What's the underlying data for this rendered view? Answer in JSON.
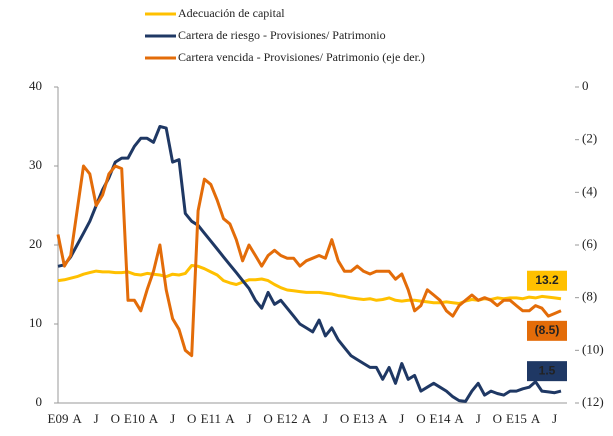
{
  "chart_data": {
    "type": "line",
    "legend": "top",
    "categories": [
      "E09",
      null,
      null,
      "A",
      null,
      null,
      "J",
      null,
      null,
      "O",
      null,
      null,
      "E10",
      null,
      null,
      "A",
      null,
      null,
      "J",
      null,
      null,
      "O",
      null,
      null,
      "E11",
      null,
      null,
      "A",
      null,
      null,
      "J",
      null,
      null,
      "O",
      null,
      null,
      "E12",
      null,
      null,
      "A",
      null,
      null,
      "J",
      null,
      null,
      "O",
      null,
      null,
      "E13",
      null,
      null,
      "A",
      null,
      null,
      "J",
      null,
      null,
      "O",
      null,
      null,
      "E14",
      null,
      null,
      "A",
      null,
      null,
      "J",
      null,
      null,
      "O",
      null,
      null,
      "E15",
      null,
      null,
      "A",
      null,
      null,
      "J",
      null
    ],
    "ylim": [
      0,
      40
    ],
    "yticks": [
      0,
      10,
      20,
      30,
      40
    ],
    "y2lim": [
      -12,
      0
    ],
    "y2ticks": [
      {
        "value": 0,
        "label": "0"
      },
      {
        "value": -2,
        "label": "(2)"
      },
      {
        "value": -4,
        "label": "(4)"
      },
      {
        "value": -6,
        "label": "(6)"
      },
      {
        "value": -8,
        "label": "(8)"
      },
      {
        "value": -10,
        "label": "(10)"
      },
      {
        "value": -12,
        "label": "(12)"
      }
    ],
    "series": [
      {
        "name": "Adecuación de capital",
        "color": "#FFC000",
        "values": [
          15.5,
          15.6,
          15.8,
          16.0,
          16.3,
          16.5,
          16.7,
          16.6,
          16.6,
          16.5,
          16.5,
          16.6,
          16.3,
          16.2,
          16.4,
          16.3,
          16.2,
          16.0,
          16.3,
          16.2,
          16.4,
          17.4,
          17.3,
          17.0,
          16.6,
          16.2,
          15.5,
          15.2,
          15.0,
          15.3,
          15.6,
          15.6,
          15.7,
          15.5,
          15.0,
          14.6,
          14.3,
          14.2,
          14.1,
          14.0,
          14.0,
          14.0,
          13.9,
          13.8,
          13.6,
          13.5,
          13.3,
          13.2,
          13.1,
          13.2,
          13.0,
          13.1,
          13.3,
          13.0,
          12.9,
          13.0,
          13.0,
          12.9,
          12.8,
          12.7,
          12.7,
          12.8,
          12.7,
          12.6,
          12.9,
          13.1,
          13.0,
          13.2,
          13.1,
          13.3,
          13.2,
          13.3,
          13.3,
          13.2,
          13.4,
          13.3,
          13.5,
          13.4,
          13.3,
          13.2
        ],
        "value_labels": [
          null,
          null,
          null,
          null,
          null,
          null,
          null,
          null,
          null,
          null,
          null,
          null,
          null,
          null,
          null,
          null,
          null,
          null,
          null,
          null,
          null,
          null,
          null,
          null,
          null,
          null,
          null,
          null,
          null,
          null,
          null,
          null,
          null,
          null,
          null,
          null,
          null,
          null,
          null,
          null,
          null,
          null,
          null,
          null,
          null,
          null,
          null,
          null,
          null,
          null,
          null,
          null,
          null,
          null,
          null,
          null,
          null,
          null,
          null,
          null,
          null,
          null,
          null,
          null,
          null,
          null,
          null,
          null,
          null,
          null,
          null,
          null,
          null,
          null,
          null,
          null,
          null,
          null,
          null,
          "13.2"
        ]
      },
      {
        "name": "Cartera de riesgo - Provisiones/ Patrimonio",
        "color": "#1F3864",
        "values": [
          17.3,
          17.5,
          18.5,
          20,
          21.5,
          23,
          25,
          27,
          28.5,
          30.5,
          31,
          31,
          32.5,
          33.5,
          33.5,
          33,
          35,
          34.8,
          30.5,
          30.8,
          24,
          23,
          22.5,
          21.5,
          20.5,
          19.5,
          18.5,
          17.5,
          16.5,
          15.5,
          14.5,
          13,
          12,
          14,
          12.5,
          13,
          12,
          11,
          10,
          9.5,
          9,
          10.5,
          8.5,
          9.5,
          8,
          7,
          6,
          5.5,
          5,
          4.5,
          4.5,
          3,
          4.5,
          2.5,
          5,
          3,
          3.5,
          1.5,
          2,
          2.5,
          2,
          1.5,
          0.8,
          0.3,
          0.2,
          1.5,
          2.5,
          1,
          1.5,
          1.2,
          1,
          1.5,
          1.5,
          1.8,
          2,
          2.7,
          1.5,
          1.4,
          1.3,
          1.5
        ],
        "value_labels": [
          null,
          null,
          null,
          null,
          null,
          null,
          null,
          null,
          null,
          null,
          null,
          null,
          null,
          null,
          null,
          null,
          null,
          null,
          null,
          null,
          null,
          null,
          null,
          null,
          null,
          null,
          null,
          null,
          null,
          null,
          null,
          null,
          null,
          null,
          null,
          null,
          null,
          null,
          null,
          null,
          null,
          null,
          null,
          null,
          null,
          null,
          null,
          null,
          null,
          null,
          null,
          null,
          null,
          null,
          null,
          null,
          null,
          null,
          null,
          null,
          null,
          null,
          null,
          null,
          null,
          null,
          null,
          null,
          null,
          null,
          null,
          null,
          null,
          null,
          null,
          null,
          null,
          null,
          null,
          "1.5"
        ]
      },
      {
        "name": "Cartera vencida - Provisiones/ Patrimonio (eje der.)",
        "color": "#E36C09",
        "axis": "y2",
        "values": [
          -5.6,
          -6.8,
          -6.4,
          -4.7,
          -3.0,
          -3.3,
          -4.5,
          -4.1,
          -3.3,
          -3.0,
          -3.1,
          -8.1,
          -8.1,
          -8.5,
          -7.7,
          -7.0,
          -6.0,
          -7.7,
          -8.8,
          -9.2,
          -10.0,
          -10.2,
          -4.7,
          -3.5,
          -3.7,
          -4.3,
          -5.0,
          -5.2,
          -5.8,
          -6.6,
          -6.0,
          -6.4,
          -6.8,
          -6.4,
          -6.2,
          -6.4,
          -6.5,
          -6.5,
          -6.8,
          -6.6,
          -6.5,
          -6.4,
          -6.5,
          -5.8,
          -6.6,
          -7.0,
          -7.0,
          -6.8,
          -7.0,
          -7.1,
          -7.0,
          -7.0,
          -7.0,
          -7.3,
          -7.1,
          -7.7,
          -8.5,
          -8.3,
          -7.7,
          -7.9,
          -8.1,
          -8.5,
          -8.7,
          -8.3,
          -8.1,
          -7.9,
          -8.1,
          -8.0,
          -8.1,
          -8.3,
          -8.1,
          -8.1,
          -8.3,
          -8.5,
          -8.5,
          -8.3,
          -8.4,
          -8.7,
          -8.6,
          -8.5
        ],
        "value_labels": [
          null,
          null,
          null,
          null,
          null,
          null,
          null,
          null,
          null,
          null,
          null,
          null,
          null,
          null,
          null,
          null,
          null,
          null,
          null,
          null,
          null,
          null,
          null,
          null,
          null,
          null,
          null,
          null,
          null,
          null,
          null,
          null,
          null,
          null,
          null,
          null,
          null,
          null,
          null,
          null,
          null,
          null,
          null,
          null,
          null,
          null,
          null,
          null,
          null,
          null,
          null,
          null,
          null,
          null,
          null,
          null,
          null,
          null,
          null,
          null,
          null,
          null,
          null,
          null,
          null,
          null,
          null,
          null,
          null,
          null,
          null,
          null,
          null,
          null,
          null,
          null,
          null,
          null,
          null,
          "(8.5)"
        ]
      }
    ]
  }
}
